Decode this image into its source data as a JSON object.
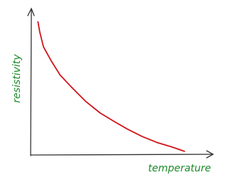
{
  "chart_data": {
    "type": "line",
    "x_label": "temperature",
    "y_label": "resistivity",
    "x": [
      4,
      5,
      7,
      11,
      16,
      22,
      30,
      38,
      46,
      53,
      61,
      69,
      77,
      84
    ],
    "series": [
      {
        "color": "#d0141a",
        "values": [
          91,
          84,
          74,
          65,
          55,
          47,
          37,
          29,
          23,
          18,
          13,
          9,
          6,
          3
        ]
      }
    ],
    "xlim": [
      0,
      100
    ],
    "ylim": [
      0,
      100
    ]
  }
}
